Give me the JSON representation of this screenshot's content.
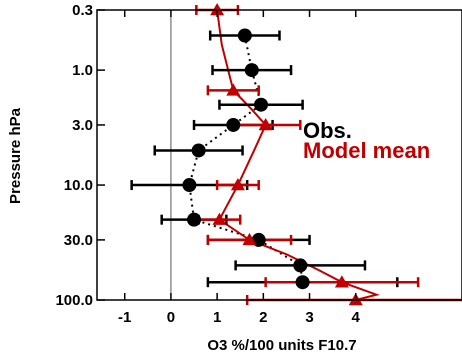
{
  "chart_data": {
    "type": "scatter",
    "title": "",
    "xlabel": "O3 %/100 units F10.7",
    "ylabel": "Pressure hPa",
    "xlim": [
      -1.6,
      6.3
    ],
    "ylim": [
      100,
      0.3
    ],
    "yscale": "log",
    "xticks": [
      -1,
      0,
      1,
      2,
      3,
      4
    ],
    "xtick_labels": [
      "-1",
      "0",
      "1",
      "2",
      "3",
      "4"
    ],
    "yticks": [
      0.3,
      1.0,
      3.0,
      10.0,
      30.0,
      100.0
    ],
    "ytick_labels": [
      "0.3",
      "1.0",
      "3.0",
      "10.0",
      "30.0",
      "100.0"
    ],
    "zero_line": 0,
    "legend_position": "right",
    "series": [
      {
        "name": "Obs.",
        "color": "#000000",
        "marker": "circle",
        "line": "dotted",
        "points": [
          {
            "p": 0.5,
            "x": 1.6,
            "err": 0.75
          },
          {
            "p": 1.0,
            "x": 1.75,
            "err": 0.85
          },
          {
            "p": 2.0,
            "x": 1.95,
            "err": 0.9
          },
          {
            "p": 3.0,
            "x": 1.35,
            "err": 0.85
          },
          {
            "p": 5.0,
            "x": 0.6,
            "err": 0.95
          },
          {
            "p": 10.0,
            "x": 0.4,
            "err": 1.25
          },
          {
            "p": 20.0,
            "x": 0.5,
            "err": 0.7
          },
          {
            "p": 30.0,
            "x": 1.9,
            "err": 1.1
          },
          {
            "p": 50.0,
            "x": 2.8,
            "err": 1.4
          },
          {
            "p": 70.0,
            "x": 2.85,
            "err": 2.05
          }
        ]
      },
      {
        "name": "Model mean",
        "color": "#c00000",
        "marker": "triangle",
        "line": "solid",
        "points": [
          {
            "p": 0.3,
            "x": 1.0,
            "err": 0.45
          },
          {
            "p": 1.5,
            "x": 1.35,
            "err": 0.55
          },
          {
            "p": 3.0,
            "x": 2.05,
            "err": 0.75
          },
          {
            "p": 10.0,
            "x": 1.45,
            "err": 0.45
          },
          {
            "p": 20.0,
            "x": 1.05,
            "err": 0.45
          },
          {
            "p": 30.0,
            "x": 1.7,
            "err": 0.9
          },
          {
            "p": 70.0,
            "x": 3.7,
            "err": 1.65
          },
          {
            "p": 100.0,
            "x": 4.0,
            "err": 2.35
          }
        ],
        "curve": [
          [
            1.0,
            0.3
          ],
          [
            1.1,
            0.6
          ],
          [
            1.35,
            1.5
          ],
          [
            1.75,
            2.2
          ],
          [
            2.05,
            3.0
          ],
          [
            1.8,
            5.0
          ],
          [
            1.45,
            10.0
          ],
          [
            1.05,
            20.0
          ],
          [
            1.7,
            30.0
          ],
          [
            2.5,
            40.0
          ],
          [
            3.2,
            55.0
          ],
          [
            3.7,
            70.0
          ],
          [
            4.45,
            90.0
          ],
          [
            4.0,
            100.0
          ]
        ]
      }
    ]
  }
}
